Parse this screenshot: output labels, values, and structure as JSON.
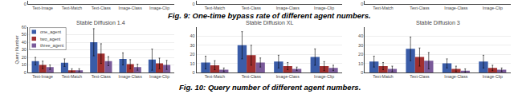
{
  "chart_data": [
    {
      "type": "bar",
      "categories": [
        "Text-Image",
        "Text-Match",
        "Text-Class",
        "Image-Class",
        "Image-Clip"
      ],
      "ylim": [
        0,
        1
      ],
      "yticks": [
        0
      ]
    },
    {
      "type": "bar",
      "categories": [
        "Text-Match",
        "Text-Class",
        "Image-Class",
        "Image-Clip"
      ],
      "ylim": [
        0,
        1
      ],
      "yticks": [
        0
      ]
    },
    {
      "type": "bar",
      "categories": [
        "Text-Match",
        "Text-Class",
        "Image-Class",
        "Image-Clip"
      ],
      "ylim": [
        0,
        1
      ],
      "yticks": [
        0
      ],
      "annotations": [
        "Fig. 9: One-time bypass rate of different agent numbers."
      ]
    },
    {
      "type": "bar",
      "title": "Stable Diffusion 1.4",
      "ylabel": "Query Number",
      "categories": [
        "Text-Image",
        "Text-Match",
        "Text-Class",
        "Image-Class",
        "Image-Clip"
      ],
      "series": [
        {
          "name": "one_agent",
          "color": "#3a5ca8",
          "values": [
            15,
            13,
            40,
            18,
            17
          ],
          "errors": [
            5,
            5,
            18,
            8,
            14
          ]
        },
        {
          "name": "two_agent",
          "color": "#a03030",
          "values": [
            10,
            3,
            25,
            11,
            12
          ],
          "errors": [
            5,
            2,
            13,
            6,
            7
          ]
        },
        {
          "name": "three_agent",
          "color": "#7a5a9a",
          "values": [
            7,
            3,
            15,
            7,
            10
          ],
          "errors": [
            3,
            2,
            6,
            4,
            6
          ]
        }
      ],
      "ylim": [
        0,
        60
      ],
      "yticks": [
        0,
        10,
        20,
        30,
        40,
        50,
        60
      ],
      "grid": true,
      "legend": "upper left"
    },
    {
      "type": "bar",
      "title": "Stable Diffusion XL",
      "categories": [
        "Text-Match",
        "Text-Class",
        "Image-Class",
        "Image-Clip"
      ],
      "series": [
        {
          "name": "one_agent",
          "color": "#3a5ca8",
          "values": [
            11,
            30,
            12,
            17
          ],
          "errors": [
            7,
            15,
            7,
            9
          ]
        },
        {
          "name": "two_agent",
          "color": "#a03030",
          "values": [
            8,
            19,
            7,
            7
          ],
          "errors": [
            5,
            11,
            4,
            5
          ]
        },
        {
          "name": "three_agent",
          "color": "#7a5a9a",
          "values": [
            3,
            11,
            4,
            5
          ],
          "errors": [
            2,
            5,
            2,
            3
          ]
        }
      ],
      "ylim": [
        0,
        50
      ],
      "yticks": [
        0,
        10,
        20,
        30,
        40
      ],
      "grid": true,
      "annotations": [
        "Fig. 10: Query number of different agent numbers."
      ]
    },
    {
      "type": "bar",
      "title": "Stable Diffusion 3",
      "categories": [
        "Text-Match",
        "Text-Class",
        "Image-Class",
        "Image-Clip"
      ],
      "series": [
        {
          "name": "one_agent",
          "color": "#3a5ca8",
          "values": [
            12,
            26,
            10,
            12
          ],
          "errors": [
            6,
            13,
            5,
            7
          ]
        },
        {
          "name": "two_agent",
          "color": "#a03030",
          "values": [
            7,
            17,
            4,
            5
          ],
          "errors": [
            4,
            10,
            3,
            3
          ]
        },
        {
          "name": "three_agent",
          "color": "#7a5a9a",
          "values": [
            4,
            13,
            2,
            3
          ],
          "errors": [
            3,
            9,
            2,
            2
          ]
        }
      ],
      "ylim": [
        0,
        50
      ],
      "yticks": [
        0,
        10,
        20,
        30,
        40
      ],
      "grid": true
    }
  ]
}
